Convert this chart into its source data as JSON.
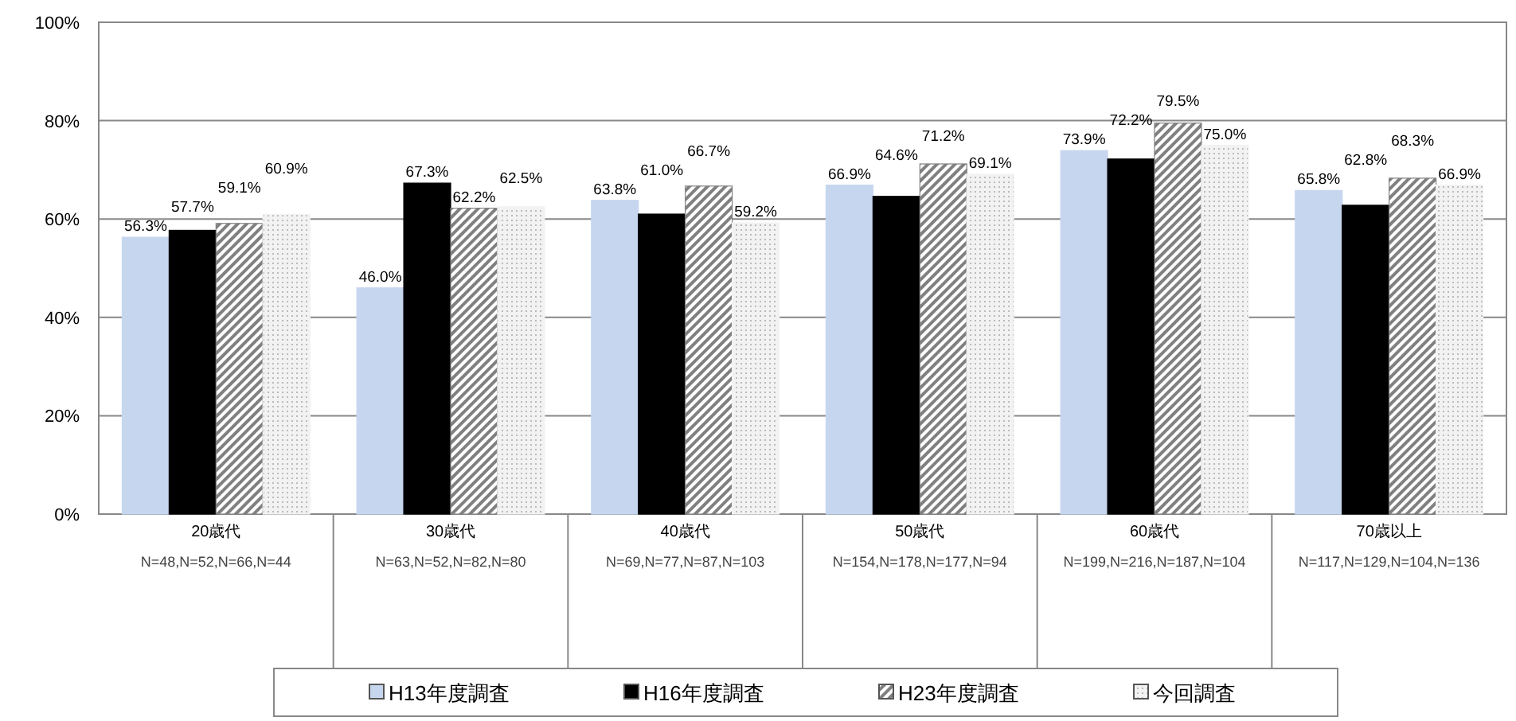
{
  "chart_data": {
    "type": "bar",
    "categories": [
      "20歳代\nN=48,N=52,N=66,N=44",
      "30歳代\nN=63,N=52,N=82,N=80",
      "40歳代\nN=69,N=77,N=87,N=103",
      "50歳代\nN=154,N=178,N=177,N=94",
      "60歳代\nN=199,N=216,N=187,N=104",
      "70歳以上\nN=117,N=129,N=104,N=136"
    ],
    "series": [
      {
        "name": "H13年度調査",
        "color": "#c6d6ee",
        "values": [
          56.3,
          46.0,
          63.8,
          66.9,
          73.9,
          65.8
        ],
        "value_labels": [
          "56.3%",
          "46.0%",
          "63.8%",
          "66.9%",
          "73.9%",
          "65.8%"
        ]
      },
      {
        "name": "H16年度調査",
        "color": "#000000",
        "values": [
          57.7,
          67.3,
          61.0,
          64.6,
          72.2,
          62.8
        ],
        "value_labels": [
          "57.7%",
          "67.3%",
          "61.0%",
          "64.6%",
          "72.2%",
          "62.8%"
        ]
      },
      {
        "name": "H23年度調査",
        "color": "#808080",
        "values": [
          59.1,
          62.2,
          66.7,
          71.2,
          79.5,
          68.3
        ],
        "value_labels": [
          "59.1%",
          "62.2%",
          "66.7%",
          "71.2%",
          "79.5%",
          "68.3%"
        ]
      },
      {
        "name": "今回調査",
        "color": "#f2f2f2",
        "values": [
          60.9,
          62.5,
          59.2,
          69.1,
          75.0,
          66.9
        ],
        "value_labels": [
          "60.9%",
          "62.5%",
          "59.2%",
          "69.1%",
          "75.0%",
          "66.9%"
        ]
      }
    ],
    "ylim": [
      0,
      100
    ],
    "yticks": [
      {
        "value": 0,
        "label": "0%"
      },
      {
        "value": 20,
        "label": "20%"
      },
      {
        "value": 40,
        "label": "40%"
      },
      {
        "value": 60,
        "label": "60%"
      },
      {
        "value": 80,
        "label": "80%"
      },
      {
        "value": 100,
        "label": "100%"
      }
    ],
    "grid": "y",
    "legend": "bottom"
  }
}
